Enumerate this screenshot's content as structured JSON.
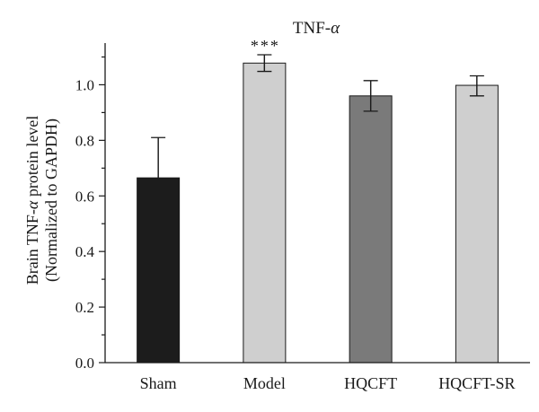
{
  "chart_data": {
    "type": "bar",
    "title_prefix": "TNF-",
    "title_greek": "α",
    "ylabel_line1_prefix": "Brain TNF-",
    "ylabel_line1_greek": "α",
    "ylabel_line1_suffix": " protein level",
    "ylabel_line2": "(Normalized to GAPDH)",
    "categories": [
      "Sham",
      "Model",
      "HQCFT",
      "HQCFT-SR"
    ],
    "values": [
      0.665,
      1.078,
      0.96,
      0.998
    ],
    "error_upper": [
      0.81,
      1.108,
      1.015,
      1.032
    ],
    "error_lower": [
      0.665,
      1.048,
      0.905,
      0.96
    ],
    "significance": [
      "",
      "***",
      "",
      ""
    ],
    "bar_colors": [
      "#1c1c1c",
      "#cfcfcf",
      "#7a7a7a",
      "#cfcfcf"
    ],
    "ylim": [
      0,
      1.15
    ],
    "yticks": [
      0.0,
      0.2,
      0.4,
      0.6,
      0.8,
      1.0
    ],
    "ytick_labels": [
      "0.0",
      "0.2",
      "0.4",
      "0.6",
      "0.8",
      "1.0"
    ]
  }
}
